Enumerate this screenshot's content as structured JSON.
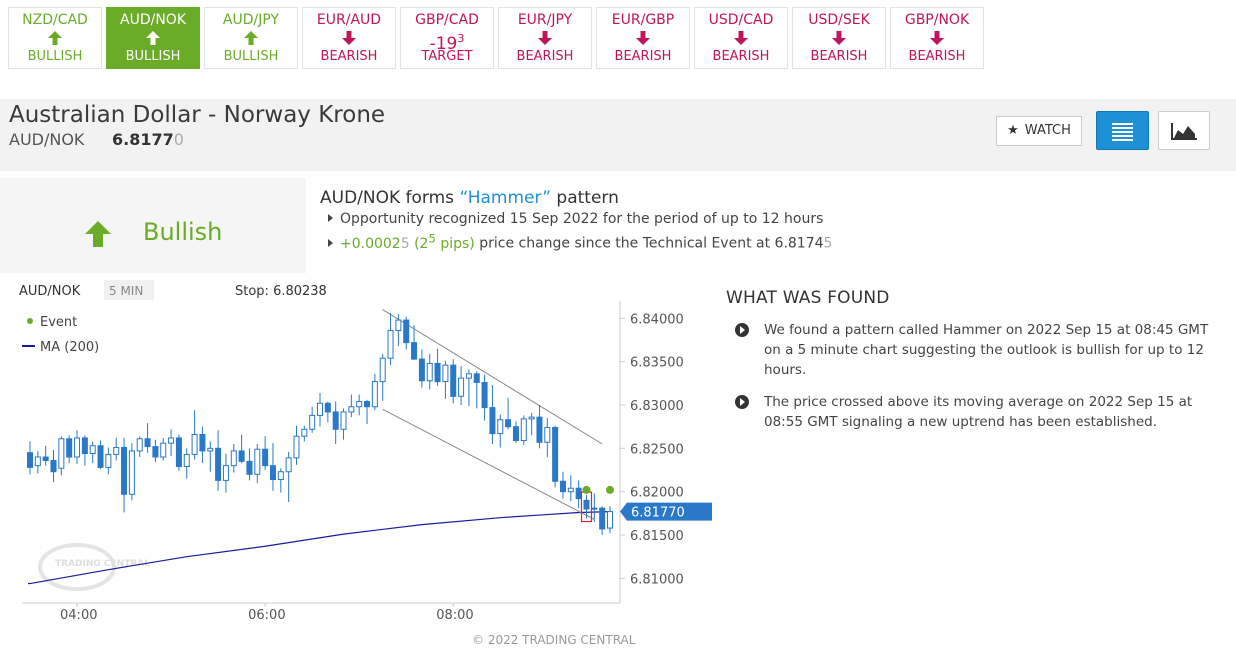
{
  "tabs": [
    {
      "pair": "NZD/CAD",
      "dir": "up",
      "status": "BULLISH",
      "state": "bull"
    },
    {
      "pair": "AUD/NOK",
      "dir": "up",
      "status": "BULLISH",
      "state": "active"
    },
    {
      "pair": "AUD/JPY",
      "dir": "up",
      "status": "BULLISH",
      "state": "bull"
    },
    {
      "pair": "EUR/AUD",
      "dir": "down",
      "status": "BEARISH",
      "state": "bear"
    },
    {
      "pair": "GBP/CAD",
      "dir": "text",
      "dir_text": "-19",
      "dir_sup": "3",
      "status": "TARGET",
      "state": "bear"
    },
    {
      "pair": "EUR/JPY",
      "dir": "down",
      "status": "BEARISH",
      "state": "bear"
    },
    {
      "pair": "EUR/GBP",
      "dir": "down",
      "status": "BEARISH",
      "state": "bear"
    },
    {
      "pair": "USD/CAD",
      "dir": "down",
      "status": "BEARISH",
      "state": "bear"
    },
    {
      "pair": "USD/SEK",
      "dir": "down",
      "status": "BEARISH",
      "state": "bear"
    },
    {
      "pair": "GBP/NOK",
      "dir": "down",
      "status": "BEARISH",
      "state": "bear"
    }
  ],
  "header": {
    "name": "Australian Dollar - Norway Krone",
    "symbol": "AUD/NOK",
    "price_main": "6.8177",
    "price_last": "0",
    "watch_label": "WATCH"
  },
  "event": {
    "sentiment": "Bullish",
    "title_pre": "AUD/NOK forms ",
    "title_hl": "“Hammer”",
    "title_post": " pattern",
    "line1": "Opportunity recognized 15 Sep 2022 for the period of up to 12 hours",
    "line2_change": "+0.0002",
    "line2_change_small": "5",
    "line2_pips_pre": "(2",
    "line2_pips_sup": "5",
    "line2_pips_post": " pips)",
    "line2_rest": " price change since the Technical Event at 6.8174",
    "line2_rest_small": "5"
  },
  "chart": {
    "symbol": "AUD/NOK",
    "timeframe": "5 MIN",
    "stop_label": "Stop: 6.80238",
    "legend_event": "Event",
    "legend_ma": "MA (200)",
    "current_price": "6.81770",
    "watermark": "TRADING CENTRAL",
    "copyright": "© 2022 TRADING CENTRAL",
    "colors": {
      "up": "#ffffff",
      "down": "#2a78c8",
      "wick": "#2a78c8",
      "ma": "#1a1aa0",
      "event": "#6aab28",
      "channel": "#888888",
      "price_tag": "#2a78c8"
    }
  },
  "chart_data": {
    "type": "candlestick",
    "y_ticks": [
      "6.84000",
      "6.83500",
      "6.83000",
      "6.82500",
      "6.82000",
      "6.81500",
      "6.81000"
    ],
    "x_ticks": [
      "04:00",
      "06:00",
      "08:00"
    ],
    "ylim": [
      6.8075,
      6.842
    ],
    "candles": [
      [
        6.8245,
        6.8258,
        6.822,
        6.8228
      ],
      [
        6.823,
        6.8247,
        6.8221,
        6.824
      ],
      [
        6.824,
        6.8253,
        6.823,
        6.8236
      ],
      [
        6.8236,
        6.8248,
        6.8211,
        6.8223
      ],
      [
        6.8227,
        6.8264,
        6.8219,
        6.8261
      ],
      [
        6.8261,
        6.8265,
        6.8233,
        6.824
      ],
      [
        6.824,
        6.8271,
        6.8232,
        6.8262
      ],
      [
        6.8262,
        6.8265,
        6.823,
        6.8244
      ],
      [
        6.8244,
        6.8258,
        6.8233,
        6.8253
      ],
      [
        6.8253,
        6.8259,
        6.8226,
        6.8228
      ],
      [
        6.8228,
        6.8251,
        6.822,
        6.8243
      ],
      [
        6.8243,
        6.8262,
        6.8236,
        6.8251
      ],
      [
        6.8251,
        6.8262,
        6.8176,
        6.8197
      ],
      [
        6.8197,
        6.8256,
        6.819,
        6.8247
      ],
      [
        6.8247,
        6.8264,
        6.824,
        6.8261
      ],
      [
        6.8261,
        6.8279,
        6.8245,
        6.8252
      ],
      [
        6.8252,
        6.826,
        6.8234,
        6.824
      ],
      [
        6.824,
        6.8262,
        6.8236,
        6.8256
      ],
      [
        6.8256,
        6.8272,
        6.8241,
        6.8262
      ],
      [
        6.8262,
        6.8266,
        6.8224,
        6.8229
      ],
      [
        6.8229,
        6.825,
        6.8215,
        6.8243
      ],
      [
        6.8243,
        6.8294,
        6.8237,
        6.8266
      ],
      [
        6.8266,
        6.8275,
        6.8233,
        6.8247
      ],
      [
        6.8247,
        6.8258,
        6.8223,
        6.825
      ],
      [
        6.825,
        6.8271,
        6.8201,
        6.8213
      ],
      [
        6.8213,
        6.8244,
        6.8199,
        6.823
      ],
      [
        6.823,
        6.8255,
        6.8222,
        6.8247
      ],
      [
        6.8247,
        6.8266,
        6.8233,
        6.8235
      ],
      [
        6.8235,
        6.825,
        6.8213,
        6.822
      ],
      [
        6.822,
        6.8255,
        6.821,
        6.8249
      ],
      [
        6.8249,
        6.8264,
        6.8225,
        6.823
      ],
      [
        6.823,
        6.8256,
        6.8201,
        6.8214
      ],
      [
        6.8214,
        6.8227,
        6.8199,
        6.8223
      ],
      [
        6.8223,
        6.8246,
        6.8188,
        6.8239
      ],
      [
        6.8239,
        6.8276,
        6.8231,
        6.8264
      ],
      [
        6.8264,
        6.8276,
        6.8258,
        6.8272
      ],
      [
        6.8272,
        6.8298,
        6.8268,
        6.8288
      ],
      [
        6.8288,
        6.8314,
        6.8275,
        6.8302
      ],
      [
        6.8302,
        6.8304,
        6.828,
        6.8292
      ],
      [
        6.8292,
        6.8304,
        6.8255,
        6.8272
      ],
      [
        6.8272,
        6.8296,
        6.826,
        6.8292
      ],
      [
        6.8292,
        6.8312,
        6.8286,
        6.8298
      ],
      [
        6.8298,
        6.8312,
        6.8288,
        6.8304
      ],
      [
        6.8304,
        6.8306,
        6.8278,
        6.8298
      ],
      [
        6.8298,
        6.8336,
        6.8294,
        6.8327
      ],
      [
        6.8327,
        6.8359,
        6.8305,
        6.8354
      ],
      [
        6.8354,
        6.8406,
        6.8346,
        6.8386
      ],
      [
        6.8386,
        6.8405,
        6.8368,
        6.8398
      ],
      [
        6.8398,
        6.8402,
        6.8364,
        6.8372
      ],
      [
        6.8372,
        6.8392,
        6.8352,
        6.8353
      ],
      [
        6.8353,
        6.8364,
        6.832,
        6.8328
      ],
      [
        6.8328,
        6.8359,
        6.8318,
        6.8348
      ],
      [
        6.8348,
        6.8365,
        6.8322,
        6.8327
      ],
      [
        6.8327,
        6.8351,
        6.8307,
        6.8346
      ],
      [
        6.8346,
        6.8353,
        6.8302,
        6.831
      ],
      [
        6.831,
        6.8345,
        6.83,
        6.8331
      ],
      [
        6.8331,
        6.8341,
        6.8299,
        6.8336
      ],
      [
        6.8336,
        6.8339,
        6.8296,
        6.8326
      ],
      [
        6.8326,
        6.8335,
        6.8282,
        6.8297
      ],
      [
        6.8297,
        6.8323,
        6.8255,
        6.8267
      ],
      [
        6.8267,
        6.8289,
        6.8251,
        6.8283
      ],
      [
        6.8283,
        6.8308,
        6.8272,
        6.8275
      ],
      [
        6.8275,
        6.8281,
        6.8256,
        6.8259
      ],
      [
        6.8259,
        6.8288,
        6.8254,
        6.8284
      ],
      [
        6.8284,
        6.8291,
        6.8265,
        6.8286
      ],
      [
        6.8286,
        6.83,
        6.825,
        6.8257
      ],
      [
        6.8257,
        6.8285,
        6.824,
        6.8274
      ],
      [
        6.8274,
        6.8276,
        6.8205,
        6.8212
      ],
      [
        6.8212,
        6.8223,
        6.8192,
        6.82
      ],
      [
        6.82,
        6.8219,
        6.8189,
        6.8204
      ],
      [
        6.8204,
        6.8213,
        6.8181,
        6.8192
      ],
      [
        6.819,
        6.8196,
        6.8169,
        6.818
      ],
      [
        6.818,
        6.8198,
        6.8165,
        6.8181
      ],
      [
        6.8181,
        6.8183,
        6.815,
        6.8157
      ],
      [
        6.8158,
        6.8183,
        6.8152,
        6.8177
      ]
    ],
    "ma": [
      [
        0,
        6.8094
      ],
      [
        10,
        6.811
      ],
      [
        20,
        6.8125
      ],
      [
        30,
        6.8137
      ],
      [
        40,
        6.8151
      ],
      [
        50,
        6.8162
      ],
      [
        60,
        6.817
      ],
      [
        65,
        6.8173
      ],
      [
        70,
        6.8176
      ],
      [
        74,
        6.8177
      ]
    ],
    "events": [
      [
        71,
        6.8202
      ],
      [
        74,
        6.8202
      ]
    ],
    "channel": [
      [
        [
          45,
          6.841
        ],
        [
          73,
          6.8255
        ]
      ],
      [
        [
          45,
          6.8295
        ],
        [
          72,
          6.8168
        ]
      ]
    ],
    "pattern_index": 71,
    "x_tick_index": [
      6,
      30,
      54
    ]
  }
}
